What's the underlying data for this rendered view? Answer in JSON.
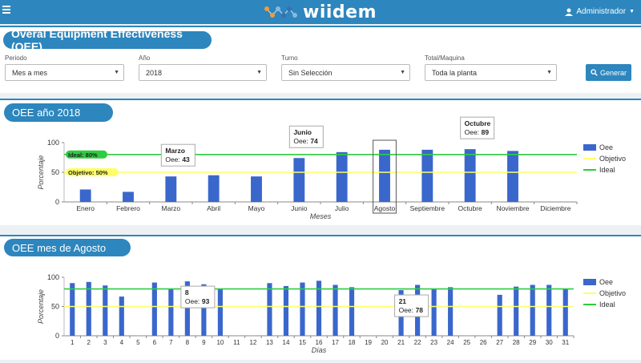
{
  "header": {
    "logo_text": "wiidem",
    "user": "Administrador"
  },
  "page": {
    "title": "Overal Equipment Effectiveness (OEE)"
  },
  "filters": [
    {
      "label": "Periodo",
      "value": "Mes a mes"
    },
    {
      "label": "Año",
      "value": "2018"
    },
    {
      "label": "Turno",
      "value": "Sin Selección"
    },
    {
      "label": "Total/Maquina",
      "value": "Toda la planta"
    }
  ],
  "generate_label": "Generar",
  "colors": {
    "accent": "#2d86bd",
    "bar": "#3a67cc",
    "objetivo": "#ffff66",
    "ideal": "#2ecc40"
  },
  "chart_data": [
    {
      "type": "bar",
      "title": "OEE año 2018",
      "xlabel": "Meses",
      "ylabel": "Porcentaje",
      "ylim": [
        0,
        100
      ],
      "ticks": [
        0,
        50,
        100
      ],
      "categories": [
        "Enero",
        "Febrero",
        "Marzo",
        "Abril",
        "Mayo",
        "Junio",
        "Julio",
        "Agosto",
        "Septiembre",
        "Octubre",
        "Noviembre",
        "Diciembre"
      ],
      "series": [
        {
          "name": "Oee",
          "values": [
            21,
            17,
            43,
            45,
            43,
            74,
            84,
            88,
            88,
            89,
            86,
            null
          ]
        }
      ],
      "lines": [
        {
          "name": "Objetivo",
          "value": 50,
          "label": "Objetivo: 50%"
        },
        {
          "name": "Ideal",
          "value": 80,
          "label": "Ideal: 80%"
        }
      ],
      "legend": "right",
      "selected": "Agosto",
      "tooltips": [
        {
          "title": "Marzo",
          "label": "Oee:",
          "value": "43",
          "index": 2
        },
        {
          "title": "Junio",
          "label": "Oee:",
          "value": "74",
          "index": 5
        },
        {
          "title": "Octubre",
          "label": "Oee:",
          "value": "89",
          "index": 9
        }
      ]
    },
    {
      "type": "bar",
      "title": "OEE mes de Agosto",
      "xlabel": "Días",
      "ylabel": "Porcentaje",
      "ylim": [
        0,
        100
      ],
      "ticks": [
        0,
        50,
        100
      ],
      "categories": [
        "1",
        "2",
        "3",
        "4",
        "5",
        "6",
        "7",
        "8",
        "9",
        "10",
        "11",
        "12",
        "13",
        "14",
        "15",
        "16",
        "17",
        "18",
        "19",
        "20",
        "21",
        "22",
        "23",
        "24",
        "25",
        "26",
        "27",
        "28",
        "29",
        "30",
        "31"
      ],
      "series": [
        {
          "name": "Oee",
          "values": [
            90,
            92,
            86,
            67,
            null,
            91,
            80,
            93,
            88,
            80,
            null,
            null,
            90,
            85,
            91,
            94,
            87,
            83,
            null,
            null,
            78,
            87,
            80,
            83,
            null,
            null,
            70,
            84,
            87,
            87,
            80
          ]
        }
      ],
      "lines": [
        {
          "name": "Objetivo",
          "value": 50
        },
        {
          "name": "Ideal",
          "value": 80
        }
      ],
      "legend": "right",
      "tooltips": [
        {
          "title": "8",
          "label": "Oee:",
          "value": "93",
          "index": 7
        },
        {
          "title": "21",
          "label": "Oee:",
          "value": "78",
          "index": 20
        }
      ]
    }
  ]
}
